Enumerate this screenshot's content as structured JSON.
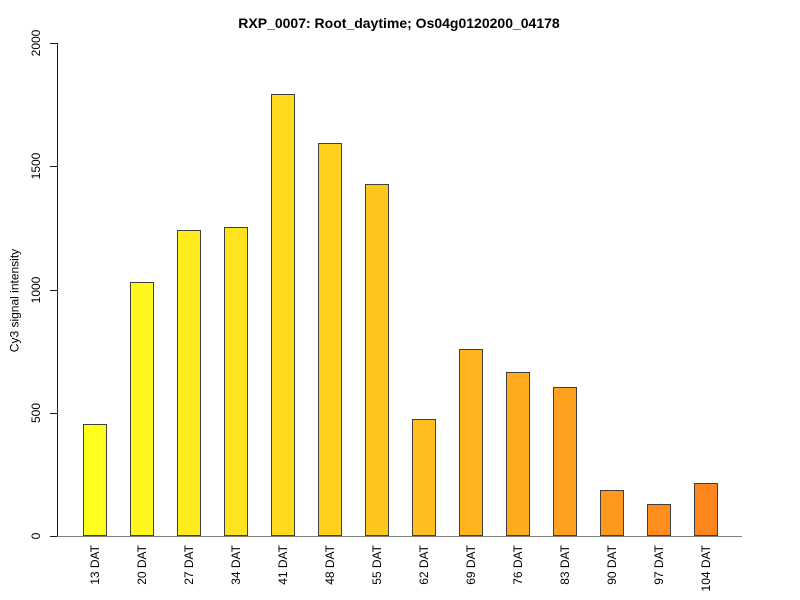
{
  "chart_data": {
    "type": "bar",
    "title": "RXP_0007: Root_daytime; Os04g0120200_04178",
    "xlabel": "",
    "ylabel": "Cy3 signal intensity",
    "categories": [
      "13 DAT",
      "20 DAT",
      "27 DAT",
      "34 DAT",
      "41 DAT",
      "48 DAT",
      "55 DAT",
      "62 DAT",
      "69 DAT",
      "76 DAT",
      "83 DAT",
      "90 DAT",
      "97 DAT",
      "104 DAT"
    ],
    "values": [
      455,
      1030,
      1240,
      1255,
      1795,
      1595,
      1430,
      475,
      760,
      665,
      605,
      185,
      130,
      215
    ],
    "bar_colors": [
      "#FFFF1E",
      "#FFF61E",
      "#FFEC1E",
      "#FFE31E",
      "#FFD91E",
      "#FFD01E",
      "#FFC71E",
      "#FFBD1E",
      "#FFB41E",
      "#FFAB1E",
      "#FFA11E",
      "#FF981E",
      "#FF8E1E",
      "#FF851E"
    ],
    "ylim": [
      0,
      2000
    ],
    "yticks": [
      0,
      500,
      1000,
      1500,
      2000
    ],
    "grid": false,
    "legend_position": "none",
    "colors": {
      "bar_border": "#3F3F3F",
      "axis": "#1A1A1A",
      "baseline": "#808080",
      "text": "#000000",
      "background": "#FFFFFF"
    }
  }
}
